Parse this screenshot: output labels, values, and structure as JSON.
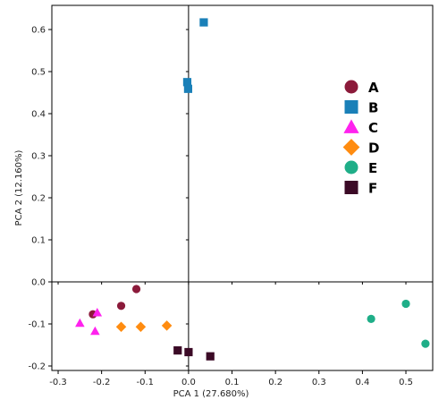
{
  "chart_data": {
    "type": "scatter",
    "title": "",
    "xlabel": "PCA 1 (27.680%)",
    "ylabel": "PCA 2 (12.160%)",
    "xlim": [
      -0.3,
      0.55
    ],
    "ylim": [
      -0.2,
      0.65
    ],
    "x_ticks": [
      -0.3,
      -0.2,
      -0.1,
      0.0,
      0.1,
      0.2,
      0.3,
      0.4,
      0.5
    ],
    "x_tick_labels": [
      "-0.3",
      "-0.2",
      "-0.1",
      "0.0",
      "0.1",
      "0.2",
      "0.3",
      "0.4",
      "0.5"
    ],
    "y_ticks": [
      -0.2,
      -0.1,
      0.0,
      0.1,
      0.2,
      0.3,
      0.4,
      0.5,
      0.6
    ],
    "y_tick_labels": [
      "-0.2",
      "-0.1",
      "0.0",
      "0.1",
      "0.2",
      "0.3",
      "0.4",
      "0.5",
      "0.6"
    ],
    "grid": false,
    "zero_lines": true,
    "legend_position": "right",
    "series": [
      {
        "name": "A",
        "marker": "circle",
        "color": "#8b1a3a",
        "points": [
          [
            -0.12,
            -0.017
          ],
          [
            -0.155,
            -0.057
          ],
          [
            -0.22,
            -0.077
          ]
        ]
      },
      {
        "name": "B",
        "marker": "square",
        "color": "#1a80b8",
        "points": [
          [
            0.035,
            0.617
          ],
          [
            -0.003,
            0.475
          ],
          [
            -0.001,
            0.459
          ]
        ]
      },
      {
        "name": "C",
        "marker": "triangle",
        "color": "#ff22ee",
        "points": [
          [
            -0.21,
            -0.073
          ],
          [
            -0.25,
            -0.098
          ],
          [
            -0.215,
            -0.117
          ]
        ]
      },
      {
        "name": "D",
        "marker": "diamond",
        "color": "#ff8c10",
        "points": [
          [
            -0.155,
            -0.107
          ],
          [
            -0.11,
            -0.107
          ],
          [
            -0.05,
            -0.104
          ]
        ]
      },
      {
        "name": "E",
        "marker": "circle",
        "color": "#1fae88",
        "points": [
          [
            0.42,
            -0.088
          ],
          [
            0.5,
            -0.052
          ],
          [
            0.545,
            -0.147
          ]
        ]
      },
      {
        "name": "F",
        "marker": "square",
        "color": "#3b0a26",
        "points": [
          [
            -0.025,
            -0.163
          ],
          [
            0.0,
            -0.167
          ],
          [
            0.05,
            -0.177
          ]
        ]
      }
    ]
  }
}
